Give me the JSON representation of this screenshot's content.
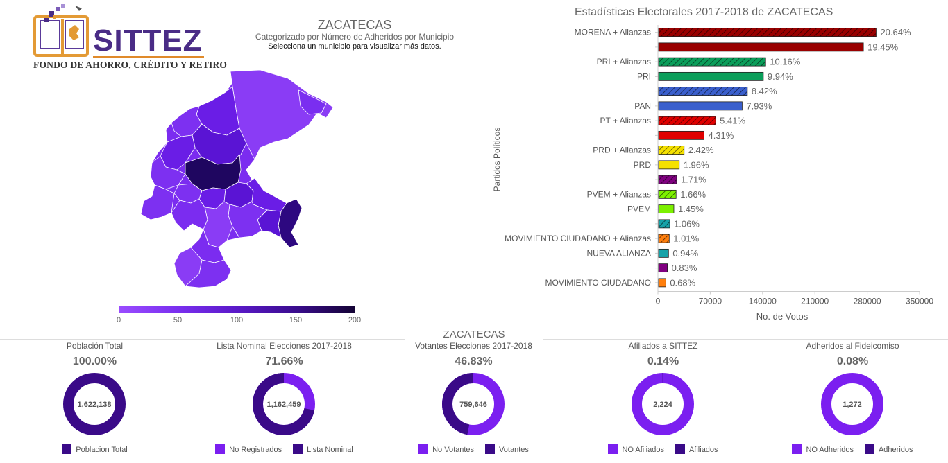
{
  "logo": {
    "name": "SITTEZ",
    "tagline": "FONDO DE AHORRO, CRÉDITO Y RETIRO"
  },
  "map": {
    "title": "ZACATECAS",
    "subtitle": "Categorizado por Número de Adheridos por Municipio",
    "hint": "Selecciona un municipio para visualizar más datos.",
    "colorbar_ticks": [
      "0",
      "50",
      "100",
      "150",
      "200"
    ]
  },
  "section": {
    "title": "ZACATECAS"
  },
  "colors": {
    "light_purple": "#7b1ff0",
    "dark_purple": "#3a0a88"
  },
  "chart_data": [
    {
      "type": "bar",
      "orientation": "horizontal",
      "title": "Estadísticas Electorales 2017-2018 de ZACATECAS",
      "xlabel": "No. de Votos",
      "ylabel": "Partidos Políticos",
      "xlim": [
        0,
        350000
      ],
      "xticks": [
        "0",
        "70000",
        "140000",
        "210000",
        "280000",
        "350000"
      ],
      "bars": [
        {
          "label": "MORENA + Alianzas",
          "value": 291000,
          "pct": "20.64%",
          "color": "#990000",
          "hatch": true
        },
        {
          "label": "",
          "value": 274000,
          "pct": "19.45%",
          "color": "#990000",
          "hatch": false
        },
        {
          "label": "PRI + Alianzas",
          "value": 143200,
          "pct": "10.16%",
          "color": "#0a9e5a",
          "hatch": true
        },
        {
          "label": "PRI",
          "value": 140100,
          "pct": "9.94%",
          "color": "#0a9e5a",
          "hatch": false
        },
        {
          "label": "",
          "value": 118700,
          "pct": "8.42%",
          "color": "#3a5fcd",
          "hatch": true
        },
        {
          "label": "PAN",
          "value": 111800,
          "pct": "7.93%",
          "color": "#3a5fcd",
          "hatch": false
        },
        {
          "label": "PT + Alianzas",
          "value": 76300,
          "pct": "5.41%",
          "color": "#e00000",
          "hatch": true
        },
        {
          "label": "",
          "value": 60800,
          "pct": "4.31%",
          "color": "#e00000",
          "hatch": false
        },
        {
          "label": "PRD + Alianzas",
          "value": 34100,
          "pct": "2.42%",
          "color": "#f5e100",
          "hatch": true
        },
        {
          "label": "PRD",
          "value": 27600,
          "pct": "1.96%",
          "color": "#f5e100",
          "hatch": false
        },
        {
          "label": "",
          "value": 24100,
          "pct": "1.71%",
          "color": "#800080",
          "hatch": true
        },
        {
          "label": "PVEM + Alianzas",
          "value": 23400,
          "pct": "1.66%",
          "color": "#7cf000",
          "hatch": true
        },
        {
          "label": "PVEM",
          "value": 20400,
          "pct": "1.45%",
          "color": "#7cf000",
          "hatch": false
        },
        {
          "label": "",
          "value": 14900,
          "pct": "1.06%",
          "color": "#17a2a8",
          "hatch": true
        },
        {
          "label": "MOVIMIENTO CIUDADANO + Alianzas",
          "value": 14200,
          "pct": "1.01%",
          "color": "#ff7f0e",
          "hatch": true
        },
        {
          "label": "NUEVA ALIANZA",
          "value": 13300,
          "pct": "0.94%",
          "color": "#17a2a8",
          "hatch": false
        },
        {
          "label": "",
          "value": 11700,
          "pct": "0.83%",
          "color": "#800080",
          "hatch": false
        },
        {
          "label": "MOVIMIENTO CIUDADANO",
          "value": 9600,
          "pct": "0.68%",
          "color": "#ff7f0e",
          "hatch": false
        }
      ]
    },
    {
      "type": "pie",
      "variant": "donut",
      "title": "Población Total",
      "percent": "100.00%",
      "center_value": "1,622,138",
      "fraction_dark": 1.0,
      "legend": [
        "Poblacion Total"
      ],
      "legend_colors": [
        "#3a0a88"
      ]
    },
    {
      "type": "pie",
      "variant": "donut",
      "title": "Lista Nominal Elecciones 2017-2018",
      "percent": "71.66%",
      "center_value": "1,162,459",
      "fraction_dark": 0.7166,
      "legend": [
        "No Registrados",
        "Lista Nominal"
      ],
      "legend_colors": [
        "#7b1ff0",
        "#3a0a88"
      ]
    },
    {
      "type": "pie",
      "variant": "donut",
      "title": "Votantes Elecciones 2017-2018",
      "percent": "46.83%",
      "center_value": "759,646",
      "fraction_dark": 0.4683,
      "legend": [
        "No Votantes",
        "Votantes"
      ],
      "legend_colors": [
        "#7b1ff0",
        "#3a0a88"
      ]
    },
    {
      "type": "pie",
      "variant": "donut",
      "title": "Afiliados a SITTEZ",
      "percent": "0.14%",
      "center_value": "2,224",
      "fraction_dark": 0.0014,
      "legend": [
        "NO Afiliados",
        "Afiliados"
      ],
      "legend_colors": [
        "#7b1ff0",
        "#3a0a88"
      ]
    },
    {
      "type": "pie",
      "variant": "donut",
      "title": "Adheridos al Fideicomiso",
      "percent": "0.08%",
      "center_value": "1,272",
      "fraction_dark": 0.0008,
      "legend": [
        "NO Adheridos",
        "Adheridos"
      ],
      "legend_colors": [
        "#7b1ff0",
        "#3a0a88"
      ]
    }
  ]
}
